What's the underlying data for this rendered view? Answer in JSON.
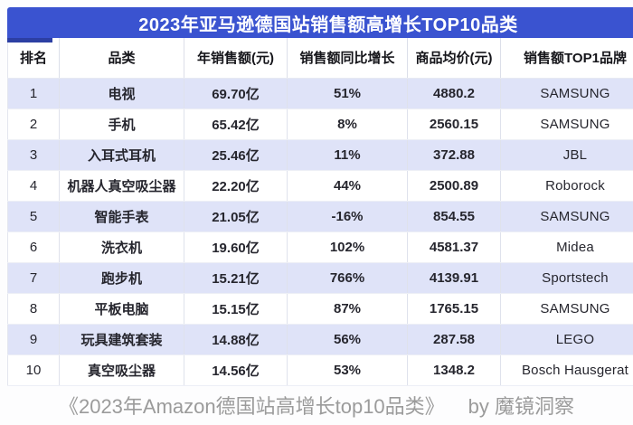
{
  "banner": {
    "title": "2023年亚马逊德国站销售额高增长TOP10品类"
  },
  "table": {
    "columns": [
      "排名",
      "品类",
      "年销售额(元)",
      "销售额同比增长",
      "商品均价(元)",
      "销售额TOP1品牌"
    ],
    "rows": [
      [
        "1",
        "电视",
        "69.70亿",
        "51%",
        "4880.2",
        "SAMSUNG"
      ],
      [
        "2",
        "手机",
        "65.42亿",
        "8%",
        "2560.15",
        "SAMSUNG"
      ],
      [
        "3",
        "入耳式耳机",
        "25.46亿",
        "11%",
        "372.88",
        "JBL"
      ],
      [
        "4",
        "机器人真空吸尘器",
        "22.20亿",
        "44%",
        "2500.89",
        "Roborock"
      ],
      [
        "5",
        "智能手表",
        "21.05亿",
        "-16%",
        "854.55",
        "SAMSUNG"
      ],
      [
        "6",
        "洗衣机",
        "19.60亿",
        "102%",
        "4581.37",
        "Midea"
      ],
      [
        "7",
        "跑步机",
        "15.21亿",
        "766%",
        "4139.91",
        "Sportstech"
      ],
      [
        "8",
        "平板电脑",
        "15.15亿",
        "87%",
        "1765.15",
        "SAMSUNG"
      ],
      [
        "9",
        "玩具建筑套装",
        "14.88亿",
        "56%",
        "287.58",
        "LEGO"
      ],
      [
        "10",
        "真空吸尘器",
        "14.56亿",
        "53%",
        "1348.2",
        "Bosch Hausgerat"
      ]
    ]
  },
  "footer": {
    "caption": "《2023年Amazon德国站高增长top10品类》",
    "attribution": "by 魔镜洞察"
  },
  "colors": {
    "banner_blue": "#3a53d0",
    "banner_tab_blue": "#2c3fa3",
    "row_alt_lavender": "#dfe3f8",
    "grid_line": "#dcdfe9",
    "footer_gray": "#9b9b9b"
  },
  "chart_data": {
    "type": "table",
    "title": "2023年亚马逊德国站销售额高增长TOP10品类",
    "columns": [
      "排名",
      "品类",
      "年销售额(元)",
      "销售额同比增长",
      "商品均价(元)",
      "销售额TOP1品牌"
    ],
    "categories": [
      "电视",
      "手机",
      "入耳式耳机",
      "机器人真空吸尘器",
      "智能手表",
      "洗衣机",
      "跑步机",
      "平板电脑",
      "玩具建筑套装",
      "真空吸尘器"
    ],
    "annual_sales_yi_yuan": [
      69.7,
      65.42,
      25.46,
      22.2,
      21.05,
      19.6,
      15.21,
      15.15,
      14.88,
      14.56
    ],
    "yoy_growth_pct": [
      51,
      8,
      11,
      44,
      -16,
      102,
      766,
      87,
      56,
      53
    ],
    "avg_price_yuan": [
      4880.2,
      2560.15,
      372.88,
      2500.89,
      854.55,
      4581.37,
      4139.91,
      1765.15,
      287.58,
      1348.2
    ],
    "top1_brand": [
      "SAMSUNG",
      "SAMSUNG",
      "JBL",
      "Roborock",
      "SAMSUNG",
      "Midea",
      "Sportstech",
      "SAMSUNG",
      "LEGO",
      "Bosch Hausgerat"
    ],
    "source_caption": "《2023年Amazon德国站高增长top10品类》 by 魔镜洞察"
  }
}
